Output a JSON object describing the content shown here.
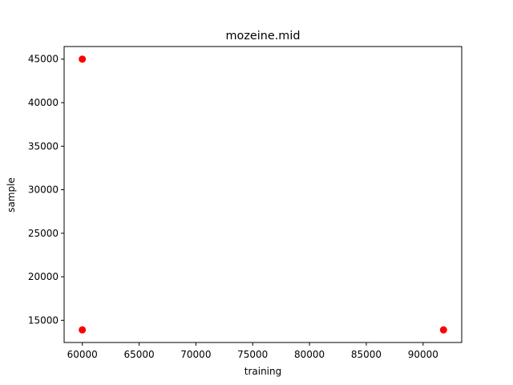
{
  "chart_data": {
    "type": "scatter",
    "title": "mozeine.mid",
    "xlabel": "training",
    "ylabel": "sample",
    "xlim": [
      58400,
      93400
    ],
    "ylim": [
      12450,
      46450
    ],
    "xticks": [
      60000,
      65000,
      70000,
      75000,
      80000,
      85000,
      90000
    ],
    "yticks": [
      15000,
      20000,
      25000,
      30000,
      35000,
      40000,
      45000
    ],
    "grid": false,
    "series": [
      {
        "color": "#ff0000",
        "points": [
          {
            "x": 60000,
            "y": 45000
          },
          {
            "x": 60000,
            "y": 13900
          },
          {
            "x": 91800,
            "y": 13900
          }
        ]
      }
    ]
  }
}
